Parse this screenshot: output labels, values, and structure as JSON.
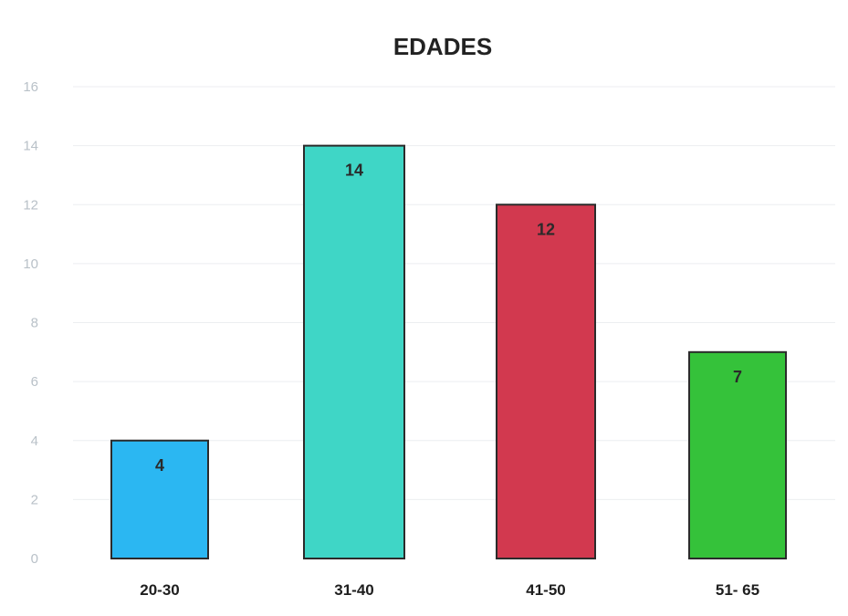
{
  "chart_data": {
    "type": "bar",
    "title": "EDADES",
    "categories": [
      "20-30",
      "31-40",
      "41-50",
      "51- 65"
    ],
    "values": [
      4,
      14,
      12,
      7
    ],
    "data_labels": [
      "4",
      "14",
      "12",
      "7"
    ],
    "colors": [
      "#2bb7f2",
      "#3fd6c6",
      "#d2394f",
      "#35c23a"
    ],
    "ylim": [
      0,
      16
    ],
    "y_ticks": [
      "0",
      "2",
      "4",
      "6",
      "8",
      "10",
      "12",
      "14",
      "16"
    ],
    "grid": true,
    "legend": "none",
    "xlabel": "",
    "ylabel": ""
  }
}
